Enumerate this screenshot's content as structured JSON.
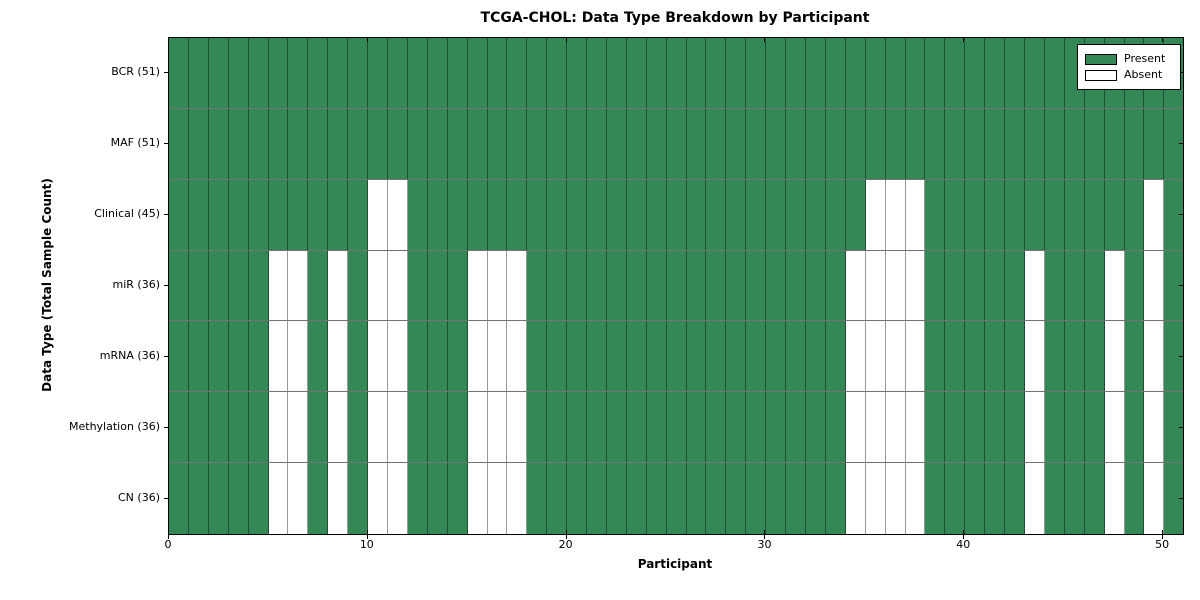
{
  "title": "TCGA-CHOL: Data Type Breakdown by Participant",
  "xlabel": "Participant",
  "ylabel": "Data Type (Total Sample Count)",
  "legend": {
    "present_label": "Present",
    "absent_label": "Absent"
  },
  "colors": {
    "present": "#348855",
    "absent": "#ffffff",
    "grid_on_present": "#1d4f33",
    "grid_on_absent": "#999999",
    "row_separator": "#737373",
    "frame": "#000000"
  },
  "chart_data": {
    "type": "heatmap",
    "title": "TCGA-CHOL: Data Type Breakdown by Participant",
    "xlabel": "Participant",
    "ylabel": "Data Type (Total Sample Count)",
    "n_participants": 51,
    "x_range": [
      0,
      51
    ],
    "x_ticks": [
      0,
      10,
      20,
      30,
      40,
      50
    ],
    "legend_position": "upper right",
    "grid": true,
    "legend": [
      {
        "label": "Present",
        "color": "#348855"
      },
      {
        "label": "Absent",
        "color": "#ffffff"
      }
    ],
    "rows": [
      {
        "label": "BCR (51)",
        "data_type": "BCR",
        "total_sample_count": 51,
        "absent_participants": []
      },
      {
        "label": "MAF (51)",
        "data_type": "MAF",
        "total_sample_count": 51,
        "absent_participants": []
      },
      {
        "label": "Clinical (45)",
        "data_type": "Clinical",
        "total_sample_count": 45,
        "absent_participants": [
          10,
          11,
          35,
          36,
          37,
          49
        ]
      },
      {
        "label": "miR (36)",
        "data_type": "miR",
        "total_sample_count": 36,
        "absent_participants": [
          5,
          6,
          8,
          10,
          11,
          15,
          16,
          17,
          34,
          35,
          36,
          37,
          43,
          47,
          49
        ]
      },
      {
        "label": "mRNA (36)",
        "data_type": "mRNA",
        "total_sample_count": 36,
        "absent_participants": [
          5,
          6,
          8,
          10,
          11,
          15,
          16,
          17,
          34,
          35,
          36,
          37,
          43,
          47,
          49
        ]
      },
      {
        "label": "Methylation (36)",
        "data_type": "Methylation",
        "total_sample_count": 36,
        "absent_participants": [
          5,
          6,
          8,
          10,
          11,
          15,
          16,
          17,
          34,
          35,
          36,
          37,
          43,
          47,
          49
        ]
      },
      {
        "label": "CN (36)",
        "data_type": "CN",
        "total_sample_count": 36,
        "absent_participants": [
          5,
          6,
          8,
          10,
          11,
          15,
          16,
          17,
          34,
          35,
          36,
          37,
          43,
          47,
          49
        ]
      }
    ]
  }
}
